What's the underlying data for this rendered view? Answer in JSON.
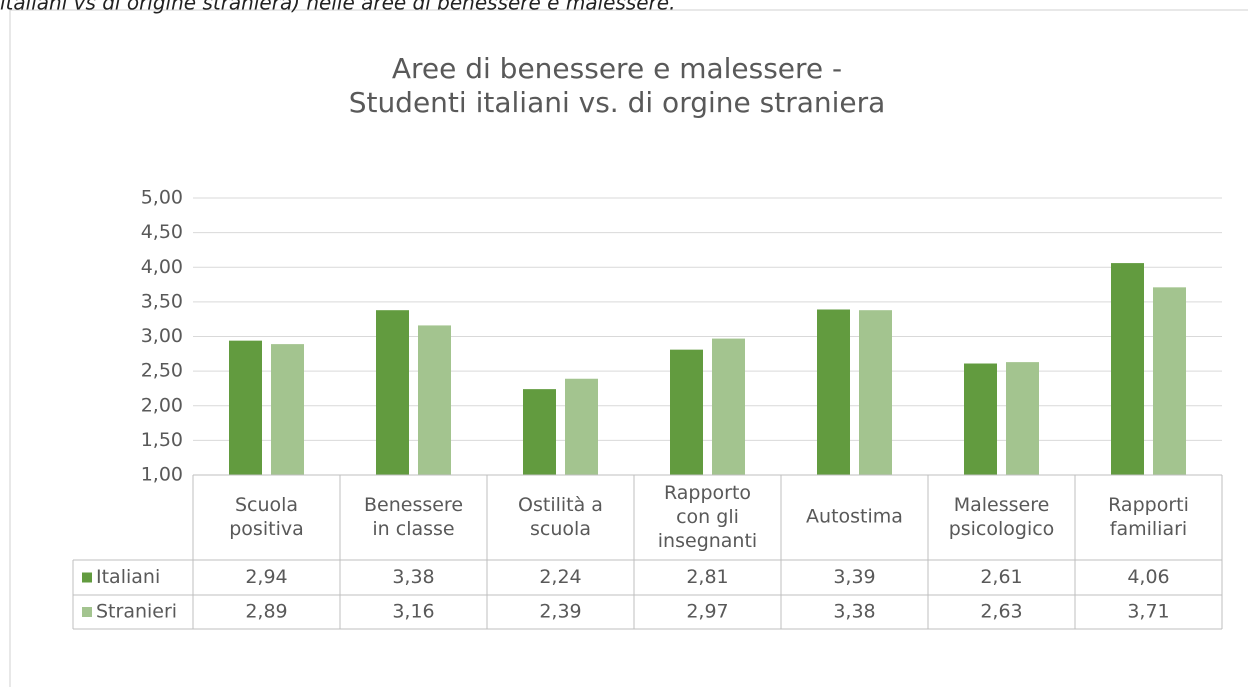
{
  "caption": "italiani vs di origine straniera) nelle aree di benessere e malessere.",
  "chart_data": {
    "type": "bar",
    "title": "Aree di benessere e malessere -\nStudenti italiani vs. di orgine straniera",
    "categories": [
      "Scuola\npositiva",
      "Benessere\nin classe",
      "Ostilità a\nscuola",
      "Rapporto\ncon gli\ninsegnanti",
      "Autostima",
      "Malessere\npsicologico",
      "Rapporti\nfamiliari"
    ],
    "series": [
      {
        "name": "Italiani",
        "color": "#629b3f",
        "values": [
          2.94,
          3.38,
          2.24,
          2.81,
          3.39,
          2.61,
          4.06
        ],
        "value_labels": [
          "2,94",
          "3,38",
          "2,24",
          "2,81",
          "3,39",
          "2,61",
          "4,06"
        ]
      },
      {
        "name": "Stranieri",
        "color": "#a3c48f",
        "values": [
          2.89,
          3.16,
          2.39,
          2.97,
          3.38,
          2.63,
          3.71
        ],
        "value_labels": [
          "2,89",
          "3,16",
          "2,39",
          "2,97",
          "3,38",
          "2,63",
          "3,71"
        ]
      }
    ],
    "ylim": [
      1,
      5
    ],
    "yticks": [
      {
        "value": 1,
        "label": "1,00"
      },
      {
        "value": 1.5,
        "label": "1,50"
      },
      {
        "value": 2,
        "label": "2,00"
      },
      {
        "value": 2.5,
        "label": "2,50"
      },
      {
        "value": 3,
        "label": "3,00"
      },
      {
        "value": 3.5,
        "label": "3,50"
      },
      {
        "value": 4,
        "label": "4,00"
      },
      {
        "value": 4.5,
        "label": "4,50"
      },
      {
        "value": 5,
        "label": "5,00"
      }
    ],
    "grid": true
  }
}
